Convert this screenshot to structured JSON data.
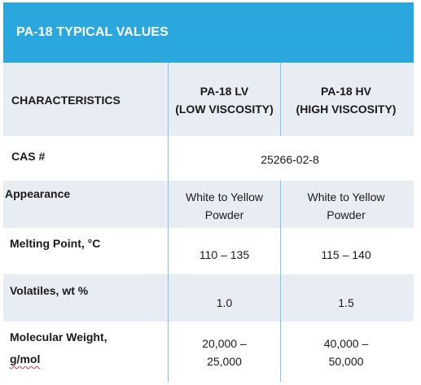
{
  "title": "PA-18 TYPICAL VALUES",
  "header": {
    "characteristics": "CHARACTERISTICS",
    "lv_line1": "PA-18 LV",
    "lv_line2": "(LOW VISCOSITY)",
    "hv_line1": "PA-18 HV",
    "hv_line2": "(HIGH VISCOSITY)"
  },
  "rows": {
    "cas": {
      "label": "CAS #",
      "value": "25266-02-8"
    },
    "appearance": {
      "label": "Appearance",
      "lv_line1": "White to Yellow",
      "lv_line2": "Powder",
      "hv_line1": "White to Yellow",
      "hv_line2": "Powder"
    },
    "melting": {
      "label": "Melting Point, °C",
      "lv": "110 – 135",
      "hv": "115 – 140"
    },
    "volatiles": {
      "label": "Volatiles, wt %",
      "lv": "1.0",
      "hv": "1.5"
    },
    "molecular": {
      "label_line1": "Molecular Weight,",
      "label_line2": "g/mol",
      "lv_line1": "20,000 –",
      "lv_line2": "25,000",
      "hv_line1": "40,000 –",
      "hv_line2": "50,000"
    }
  }
}
